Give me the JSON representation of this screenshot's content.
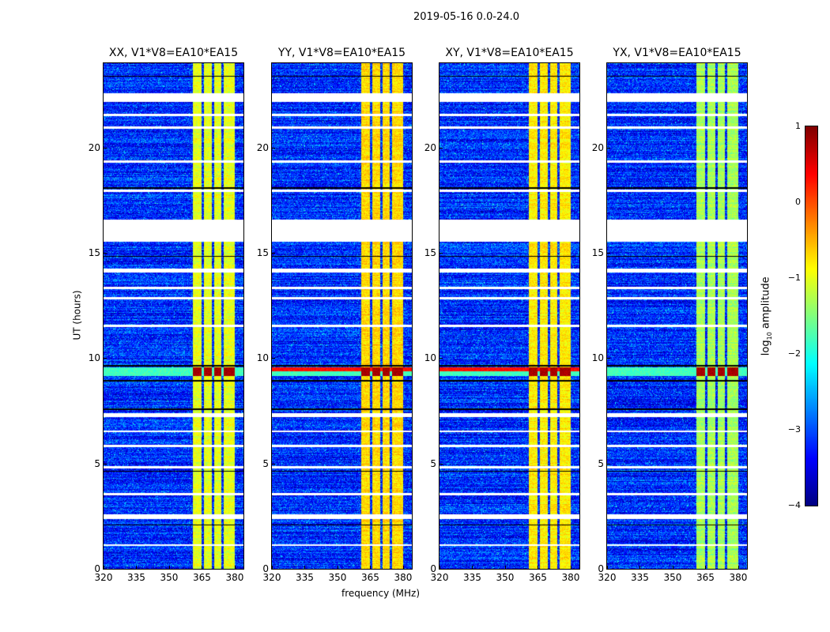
{
  "chart_data": {
    "type": "heatmap",
    "title": "2019-05-16 0.0-24.0",
    "xlabel": "frequency (MHz)",
    "ylabel": "UT (hours)",
    "xlim": [
      320,
      384
    ],
    "ylim": [
      0,
      24
    ],
    "xticks": [
      320,
      335,
      350,
      365,
      380
    ],
    "yticks": [
      0,
      5,
      10,
      15,
      20
    ],
    "colorbar": {
      "label": "log10 amplitude",
      "label_main": "log",
      "label_sub": "10",
      "label_tail": " amplitude",
      "range": [
        -4,
        1
      ],
      "ticks": [
        "1",
        "0",
        "−1",
        "−2",
        "−3",
        "−4"
      ],
      "tick_values": [
        1,
        0,
        -1,
        -2,
        -3,
        -4
      ],
      "colormap": "jet"
    },
    "background_level": -3.2,
    "rfi_band_mhz": [
      360.5,
      380
    ],
    "rfi_gaps_mhz": [
      365.2,
      369.8,
      374.3
    ],
    "flagged_hours": [
      [
        22.2,
        22.6
      ],
      [
        15.55,
        16.6
      ],
      [
        17.9,
        18.0
      ],
      [
        14.1,
        14.25
      ],
      [
        2.4,
        2.6
      ],
      [
        7.2,
        7.4
      ],
      [
        4.8,
        4.9
      ],
      [
        3.5,
        3.6
      ],
      [
        6.5,
        6.6
      ],
      [
        11.5,
        11.6
      ],
      [
        19.3,
        19.4
      ],
      [
        20.9,
        21.0
      ],
      [
        12.8,
        12.9
      ],
      [
        13.3,
        13.4
      ],
      [
        5.8,
        5.9
      ],
      [
        1.1,
        1.2
      ],
      [
        21.5,
        21.6
      ]
    ],
    "dark_hours": [
      18.1,
      9.65,
      8.95,
      4.65,
      2.1,
      23.4,
      14.85,
      7.6
    ],
    "burst_hours": [
      9.15,
      9.6
    ],
    "panels": [
      {
        "title": "XX, V1*V8=EA10*EA15",
        "rfi_level": -1.0,
        "burst_full_row": false
      },
      {
        "title": "YY, V1*V8=EA10*EA15",
        "rfi_level": -0.7,
        "burst_full_row": true
      },
      {
        "title": "XY, V1*V8=EA10*EA15",
        "rfi_level": -0.8,
        "burst_full_row": true
      },
      {
        "title": "YX, V1*V8=EA10*EA15",
        "rfi_level": -1.3,
        "burst_full_row": false
      }
    ]
  }
}
